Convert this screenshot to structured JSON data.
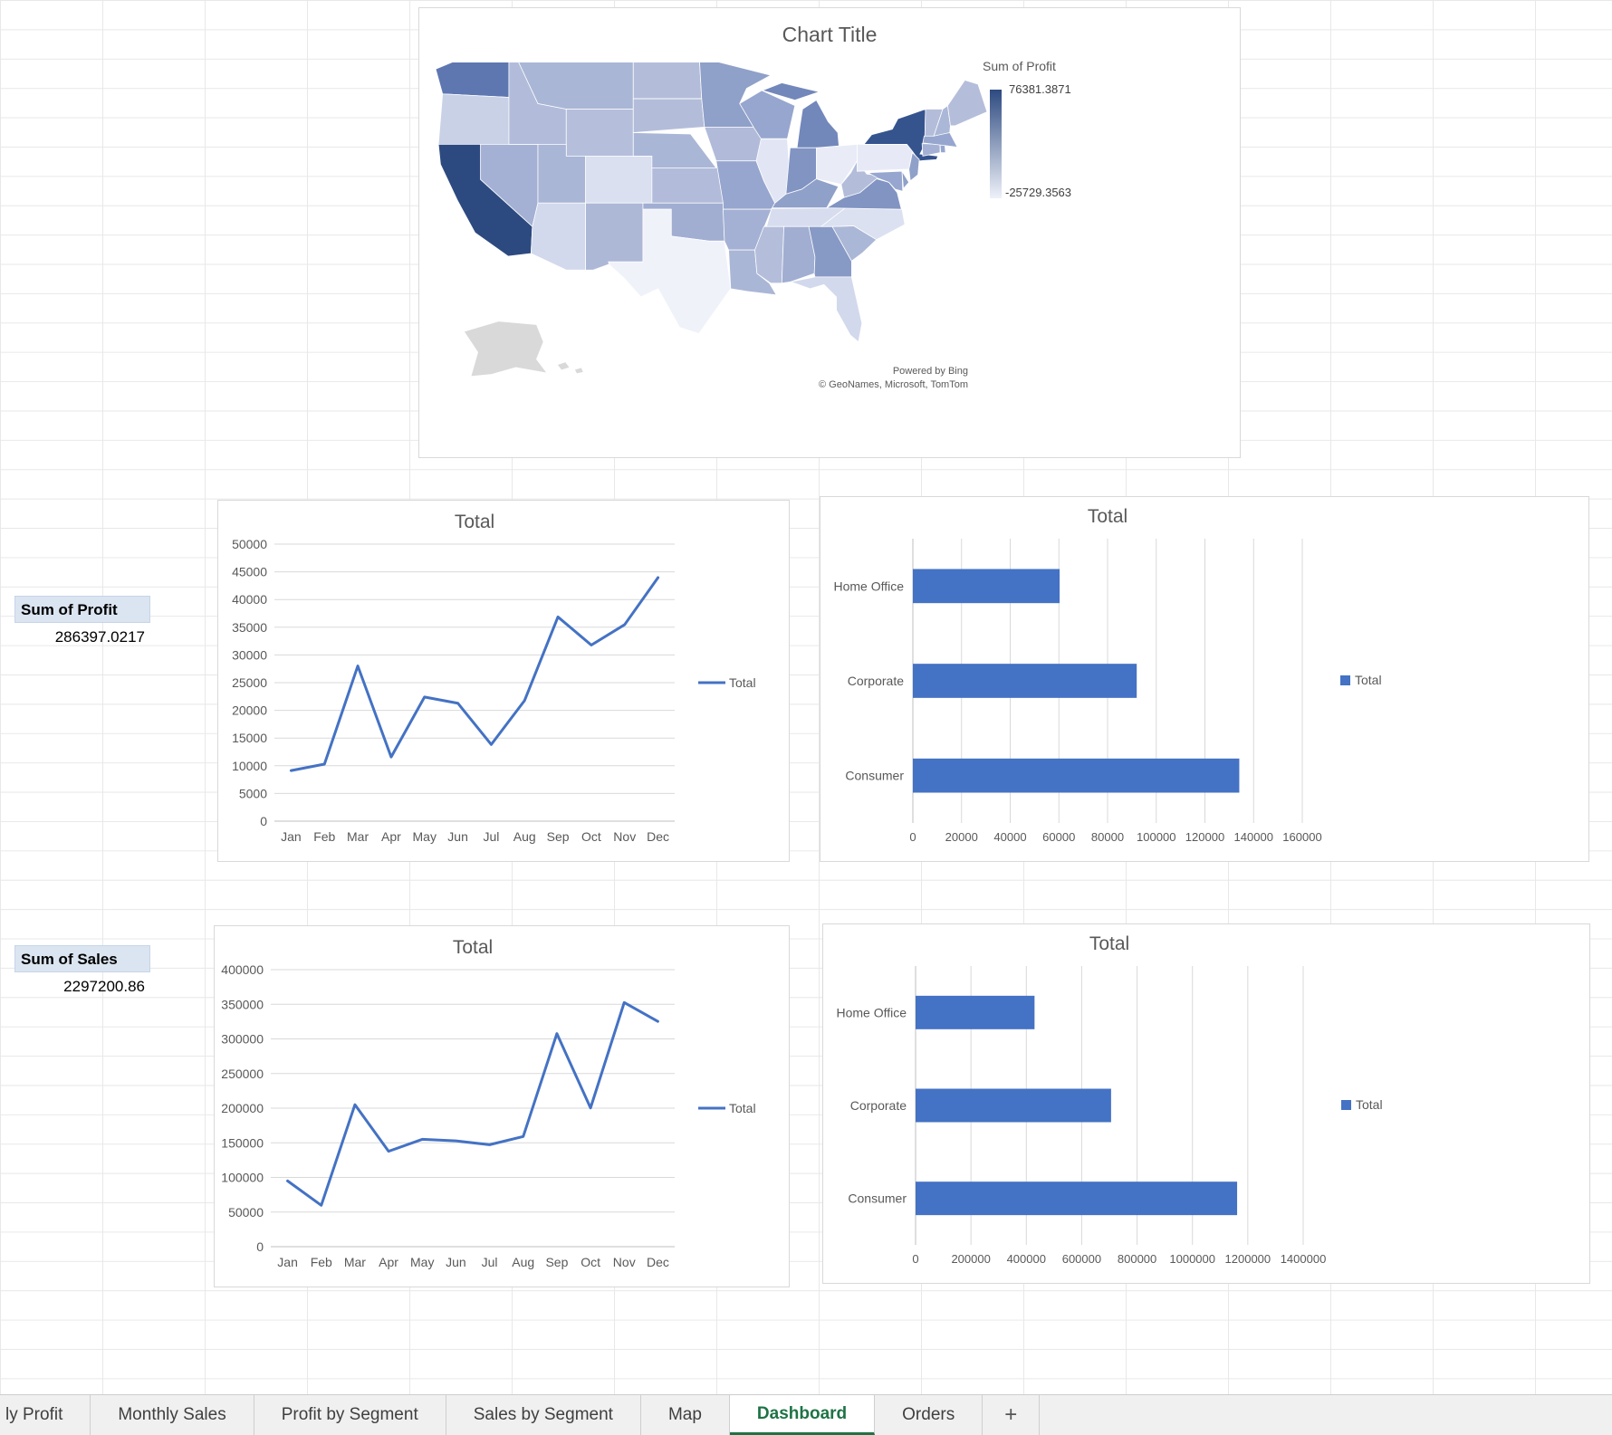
{
  "pivot": {
    "profit_label": "Sum of Profit",
    "profit_value": "286397.0217",
    "sales_label": "Sum of Sales",
    "sales_value": "2297200.86"
  },
  "tabs": {
    "items": [
      {
        "label": "ly Profit",
        "active": false
      },
      {
        "label": "Monthly Sales",
        "active": false
      },
      {
        "label": "Profit by Segment",
        "active": false
      },
      {
        "label": "Sales by Segment",
        "active": false
      },
      {
        "label": "Map",
        "active": false
      },
      {
        "label": "Dashboard",
        "active": true
      },
      {
        "label": "Orders",
        "active": false
      }
    ],
    "new_sheet_label": "+"
  },
  "map_chart": {
    "type": "map",
    "title": "Chart Title",
    "legend_title": "Sum of Profit",
    "legend_max": "76381.3871",
    "legend_min": "-25729.3563",
    "attribution_line1": "Powered by Bing",
    "attribution_line2": "© GeoNames, Microsoft, TomTom",
    "colors": {
      "no_data": "#d9d9d9",
      "scale_max": "#2d4a80",
      "scale_min": "#eef1f9",
      "state_border": "#ffffff"
    },
    "states": [
      {
        "id": "WA",
        "fill": "#5e77b1"
      },
      {
        "id": "OR",
        "fill": "#c9d1e6"
      },
      {
        "id": "CA",
        "fill": "#2d4a80"
      },
      {
        "id": "NV",
        "fill": "#a4b1d4"
      },
      {
        "id": "ID",
        "fill": "#b2bcda"
      },
      {
        "id": "MT",
        "fill": "#aab6d6"
      },
      {
        "id": "WY",
        "fill": "#b5bfdb"
      },
      {
        "id": "UT",
        "fill": "#aab6d6"
      },
      {
        "id": "CO",
        "fill": "#dae0f0"
      },
      {
        "id": "AZ",
        "fill": "#d2d9ec"
      },
      {
        "id": "NM",
        "fill": "#adb8d7"
      },
      {
        "id": "ND",
        "fill": "#b3bdda"
      },
      {
        "id": "SD",
        "fill": "#b3bdda"
      },
      {
        "id": "NE",
        "fill": "#aab6d6"
      },
      {
        "id": "KS",
        "fill": "#b2bcda"
      },
      {
        "id": "OK",
        "fill": "#a1aed2"
      },
      {
        "id": "TX",
        "fill": "#f0f2fa"
      },
      {
        "id": "MN",
        "fill": "#8fa0c9"
      },
      {
        "id": "IA",
        "fill": "#b1bbd9"
      },
      {
        "id": "MO",
        "fill": "#97a6ce"
      },
      {
        "id": "AR",
        "fill": "#a4b1d4"
      },
      {
        "id": "LA",
        "fill": "#aab6d6"
      },
      {
        "id": "WI",
        "fill": "#97a6ce"
      },
      {
        "id": "IL",
        "fill": "#e2e6f4"
      },
      {
        "id": "MI",
        "fill": "#7287ba"
      },
      {
        "id": "IN",
        "fill": "#8194c2"
      },
      {
        "id": "OH",
        "fill": "#e9ecf7"
      },
      {
        "id": "KY",
        "fill": "#8fa0c9"
      },
      {
        "id": "TN",
        "fill": "#d7ddee"
      },
      {
        "id": "MS",
        "fill": "#b4bedb"
      },
      {
        "id": "AL",
        "fill": "#a1aed2"
      },
      {
        "id": "GA",
        "fill": "#8799c5"
      },
      {
        "id": "FL",
        "fill": "#d2d9ec"
      },
      {
        "id": "SC",
        "fill": "#abb7d6"
      },
      {
        "id": "NC",
        "fill": "#dce1f1"
      },
      {
        "id": "VA",
        "fill": "#8194c2"
      },
      {
        "id": "WV",
        "fill": "#b3bdda"
      },
      {
        "id": "MD",
        "fill": "#97a6ce"
      },
      {
        "id": "DE",
        "fill": "#8fa0c9"
      },
      {
        "id": "PA",
        "fill": "#e7eaf6"
      },
      {
        "id": "NY",
        "fill": "#35548e"
      },
      {
        "id": "NJ",
        "fill": "#8fa0c9"
      },
      {
        "id": "CT",
        "fill": "#a4b1d4"
      },
      {
        "id": "RI",
        "fill": "#97a6ce"
      },
      {
        "id": "MA",
        "fill": "#97a6ce"
      },
      {
        "id": "VT",
        "fill": "#b3bdda"
      },
      {
        "id": "NH",
        "fill": "#abb7d6"
      },
      {
        "id": "ME",
        "fill": "#b4bedb"
      },
      {
        "id": "AK",
        "fill": "#d9d9d9"
      }
    ]
  },
  "chart_data": [
    {
      "id": "monthly-profit",
      "type": "line",
      "title": "Total",
      "categories": [
        "Jan",
        "Feb",
        "Mar",
        "Apr",
        "May",
        "Jun",
        "Jul",
        "Aug",
        "Sep",
        "Oct",
        "Nov",
        "Dec"
      ],
      "series": [
        {
          "name": "Total",
          "values": [
            9134,
            10294,
            28010,
            11587,
            22411,
            21285,
            13832,
            21776,
            36857,
            31784,
            35468,
            43959
          ]
        }
      ],
      "ylim": [
        0,
        50000
      ],
      "ytick": 5000,
      "grid": true,
      "legend_position": "right",
      "accent": "#4472c4"
    },
    {
      "id": "profit-by-segment",
      "type": "bar",
      "orientation": "horizontal",
      "title": "Total",
      "categories": [
        "Home Office",
        "Corporate",
        "Consumer"
      ],
      "series": [
        {
          "name": "Total",
          "values": [
            60299,
            91979,
            134119
          ]
        }
      ],
      "xlim": [
        0,
        160000
      ],
      "xtick": 20000,
      "grid": true,
      "legend_position": "right",
      "accent": "#4472c4"
    },
    {
      "id": "monthly-sales",
      "type": "line",
      "title": "Total",
      "categories": [
        "Jan",
        "Feb",
        "Mar",
        "Apr",
        "May",
        "Jun",
        "Jul",
        "Aug",
        "Sep",
        "Oct",
        "Nov",
        "Dec"
      ],
      "series": [
        {
          "name": "Total",
          "values": [
            94925,
            59751,
            205005,
            137762,
            155029,
            152719,
            147238,
            159044,
            307650,
            200323,
            352461,
            325294
          ]
        }
      ],
      "ylim": [
        0,
        400000
      ],
      "ytick": 50000,
      "grid": true,
      "legend_position": "right",
      "accent": "#4472c4"
    },
    {
      "id": "sales-by-segment",
      "type": "bar",
      "orientation": "horizontal",
      "title": "Total",
      "categories": [
        "Home Office",
        "Corporate",
        "Consumer"
      ],
      "series": [
        {
          "name": "Total",
          "values": [
            429653,
            706146,
            1161401
          ]
        }
      ],
      "xlim": [
        0,
        1400000
      ],
      "xtick": 200000,
      "grid": true,
      "legend_position": "right",
      "accent": "#4472c4"
    }
  ]
}
